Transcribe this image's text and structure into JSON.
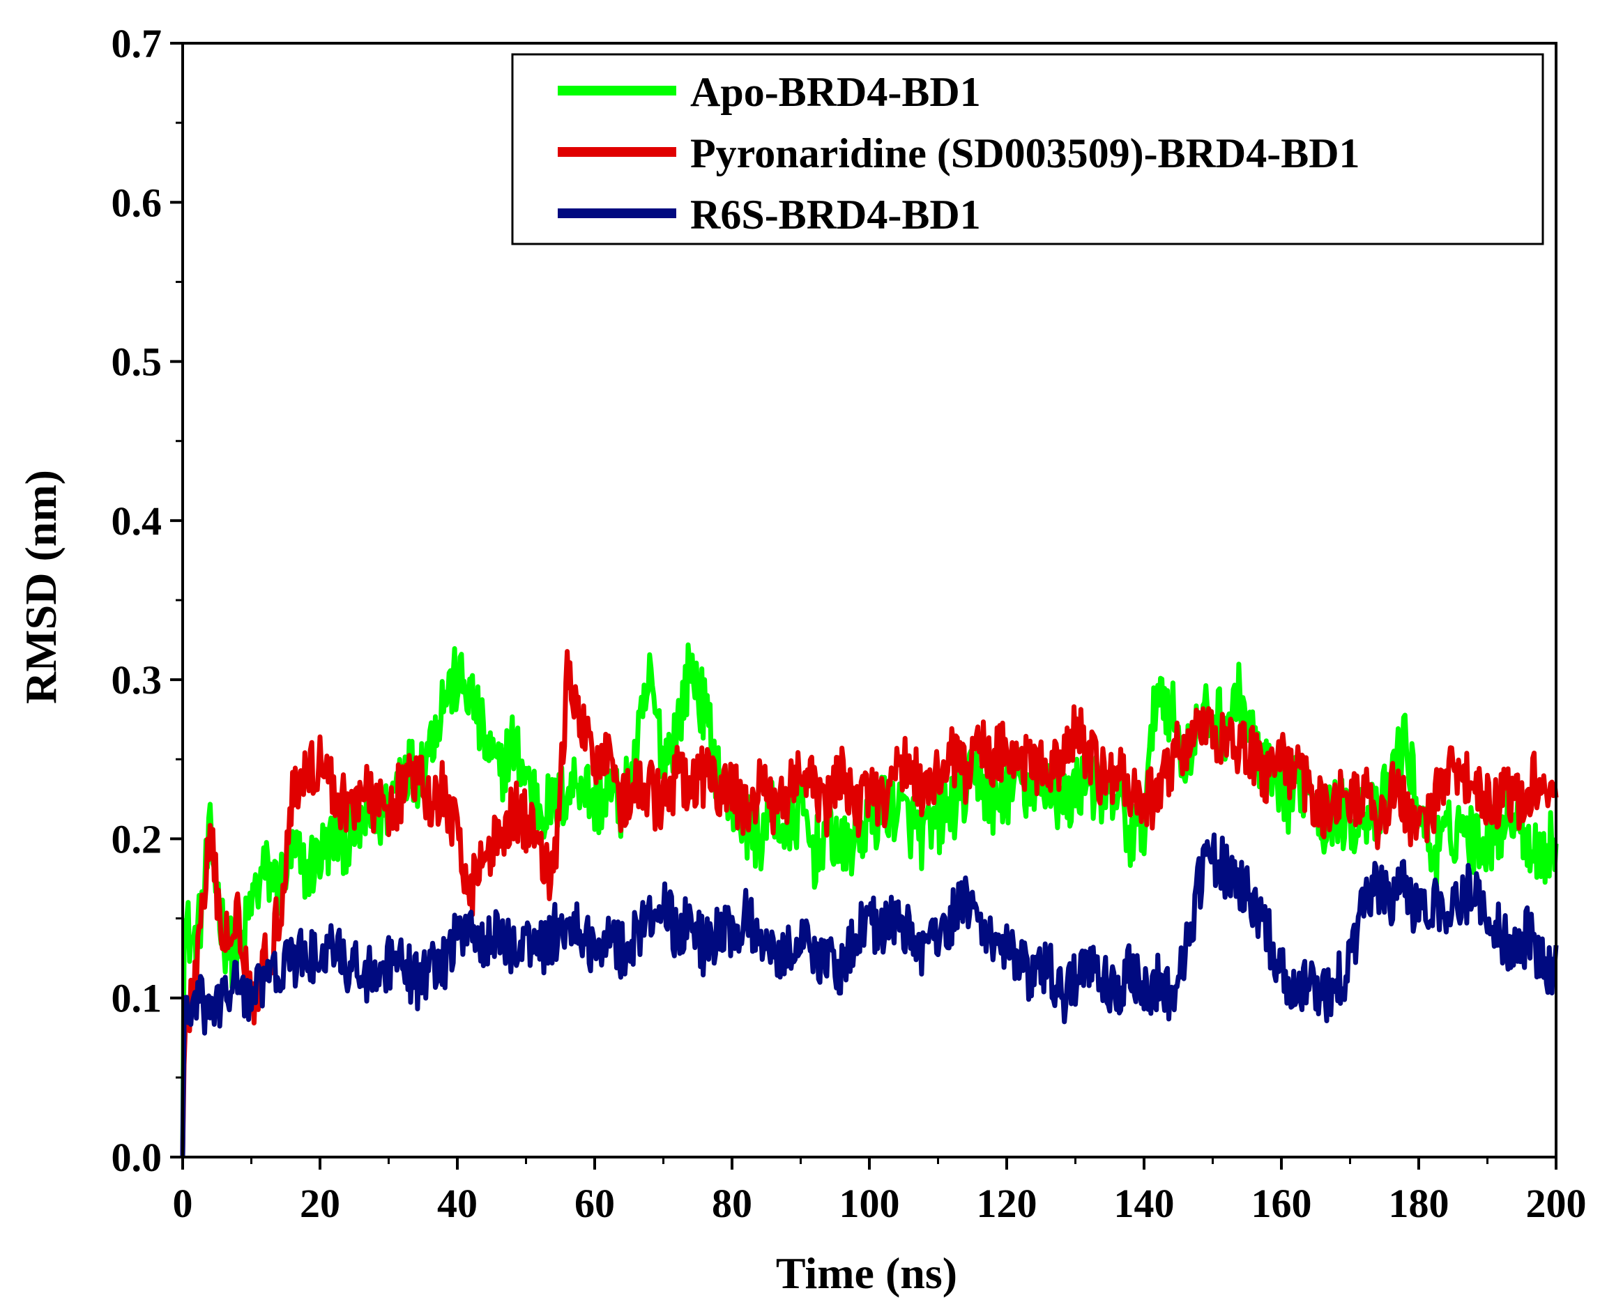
{
  "chart_data": {
    "type": "line",
    "xlabel": "Time (ns)",
    "ylabel": "RMSD (nm)",
    "xlim": [
      0,
      200
    ],
    "ylim": [
      0,
      0.7
    ],
    "xticks": [
      0,
      20,
      40,
      60,
      80,
      100,
      120,
      140,
      160,
      180,
      200
    ],
    "yticks": [
      0.0,
      0.1,
      0.2,
      0.3,
      0.4,
      0.5,
      0.6,
      0.7
    ],
    "ytick_labels": [
      "0.0",
      "0.1",
      "0.2",
      "0.3",
      "0.4",
      "0.5",
      "0.6",
      "0.7"
    ],
    "grid": false,
    "legend_position": "top-right",
    "series": [
      {
        "name": "Apo-BRD4-BD1",
        "color": "#00ff00",
        "x": [
          0,
          2,
          4,
          6,
          8,
          10,
          12,
          14,
          16,
          18,
          20,
          22,
          24,
          26,
          28,
          30,
          32,
          34,
          36,
          38,
          40,
          42,
          44,
          46,
          48,
          50,
          52,
          54,
          56,
          58,
          60,
          62,
          64,
          66,
          68,
          70,
          72,
          74,
          76,
          78,
          80,
          82,
          84,
          86,
          88,
          90,
          92,
          94,
          96,
          98,
          100,
          102,
          104,
          106,
          108,
          110,
          112,
          114,
          116,
          118,
          120,
          122,
          124,
          126,
          128,
          130,
          132,
          134,
          136,
          138,
          140,
          142,
          144,
          146,
          148,
          150,
          152,
          154,
          156,
          158,
          160,
          162,
          164,
          166,
          168,
          170,
          172,
          174,
          176,
          178,
          180,
          182,
          184,
          186,
          188,
          190,
          192,
          194,
          196,
          198,
          200
        ],
        "values": [
          0.15,
          0.13,
          0.2,
          0.14,
          0.12,
          0.16,
          0.18,
          0.17,
          0.19,
          0.18,
          0.19,
          0.2,
          0.2,
          0.21,
          0.21,
          0.22,
          0.25,
          0.24,
          0.26,
          0.29,
          0.3,
          0.29,
          0.26,
          0.24,
          0.26,
          0.24,
          0.22,
          0.22,
          0.23,
          0.24,
          0.22,
          0.23,
          0.22,
          0.25,
          0.3,
          0.25,
          0.27,
          0.31,
          0.28,
          0.24,
          0.22,
          0.21,
          0.2,
          0.22,
          0.2,
          0.22,
          0.19,
          0.21,
          0.19,
          0.2,
          0.21,
          0.22,
          0.22,
          0.21,
          0.2,
          0.21,
          0.22,
          0.23,
          0.24,
          0.22,
          0.23,
          0.24,
          0.22,
          0.24,
          0.22,
          0.23,
          0.24,
          0.22,
          0.23,
          0.2,
          0.21,
          0.3,
          0.28,
          0.25,
          0.27,
          0.28,
          0.27,
          0.29,
          0.26,
          0.24,
          0.22,
          0.23,
          0.24,
          0.21,
          0.22,
          0.21,
          0.22,
          0.21,
          0.24,
          0.26,
          0.22,
          0.19,
          0.2,
          0.21,
          0.2,
          0.2,
          0.21,
          0.22,
          0.2,
          0.19,
          0.2
        ]
      },
      {
        "name": "Pyronaridine (SD003509)-BRD4-BD1",
        "color": "#e00000",
        "x": [
          0,
          2,
          4,
          6,
          8,
          10,
          12,
          14,
          16,
          18,
          20,
          22,
          24,
          26,
          28,
          30,
          32,
          34,
          36,
          38,
          40,
          42,
          44,
          46,
          48,
          50,
          52,
          54,
          56,
          58,
          60,
          62,
          64,
          66,
          68,
          70,
          72,
          74,
          76,
          78,
          80,
          82,
          84,
          86,
          88,
          90,
          92,
          94,
          96,
          98,
          100,
          102,
          104,
          106,
          108,
          110,
          112,
          114,
          116,
          118,
          120,
          122,
          124,
          126,
          128,
          130,
          132,
          134,
          136,
          138,
          140,
          142,
          144,
          146,
          148,
          150,
          152,
          154,
          156,
          158,
          160,
          162,
          164,
          166,
          168,
          170,
          172,
          174,
          176,
          178,
          180,
          182,
          184,
          186,
          188,
          190,
          192,
          194,
          196,
          198,
          200
        ],
        "values": [
          0.06,
          0.12,
          0.2,
          0.13,
          0.16,
          0.1,
          0.12,
          0.15,
          0.23,
          0.24,
          0.25,
          0.23,
          0.22,
          0.23,
          0.22,
          0.22,
          0.23,
          0.24,
          0.22,
          0.23,
          0.2,
          0.17,
          0.19,
          0.2,
          0.22,
          0.21,
          0.2,
          0.17,
          0.3,
          0.27,
          0.25,
          0.26,
          0.22,
          0.23,
          0.23,
          0.22,
          0.24,
          0.23,
          0.24,
          0.23,
          0.23,
          0.22,
          0.23,
          0.22,
          0.23,
          0.24,
          0.23,
          0.22,
          0.24,
          0.22,
          0.23,
          0.22,
          0.24,
          0.25,
          0.23,
          0.24,
          0.25,
          0.24,
          0.26,
          0.25,
          0.26,
          0.25,
          0.24,
          0.25,
          0.24,
          0.27,
          0.25,
          0.24,
          0.24,
          0.23,
          0.22,
          0.23,
          0.25,
          0.26,
          0.27,
          0.26,
          0.27,
          0.26,
          0.25,
          0.24,
          0.25,
          0.24,
          0.23,
          0.22,
          0.23,
          0.22,
          0.23,
          0.21,
          0.23,
          0.22,
          0.21,
          0.22,
          0.24,
          0.25,
          0.23,
          0.22,
          0.23,
          0.22,
          0.23,
          0.24,
          0.22
        ]
      },
      {
        "name": "R6S-BRD4-BD1",
        "color": "#000a80",
        "x": [
          0,
          2,
          4,
          6,
          8,
          10,
          12,
          14,
          16,
          18,
          20,
          22,
          24,
          26,
          28,
          30,
          32,
          34,
          36,
          38,
          40,
          42,
          44,
          46,
          48,
          50,
          52,
          54,
          56,
          58,
          60,
          62,
          64,
          66,
          68,
          70,
          72,
          74,
          76,
          78,
          80,
          82,
          84,
          86,
          88,
          90,
          92,
          94,
          96,
          98,
          100,
          102,
          104,
          106,
          108,
          110,
          112,
          114,
          116,
          118,
          120,
          122,
          124,
          126,
          128,
          130,
          132,
          134,
          136,
          138,
          140,
          142,
          144,
          146,
          148,
          150,
          152,
          154,
          156,
          158,
          160,
          162,
          164,
          166,
          168,
          170,
          172,
          174,
          176,
          178,
          180,
          182,
          184,
          186,
          188,
          190,
          192,
          194,
          196,
          198,
          200
        ],
        "values": [
          0.08,
          0.1,
          0.09,
          0.1,
          0.11,
          0.1,
          0.11,
          0.12,
          0.12,
          0.13,
          0.12,
          0.13,
          0.12,
          0.12,
          0.11,
          0.12,
          0.12,
          0.11,
          0.12,
          0.12,
          0.14,
          0.15,
          0.13,
          0.14,
          0.13,
          0.14,
          0.13,
          0.14,
          0.15,
          0.14,
          0.13,
          0.14,
          0.13,
          0.14,
          0.15,
          0.16,
          0.14,
          0.15,
          0.13,
          0.14,
          0.14,
          0.15,
          0.14,
          0.13,
          0.13,
          0.14,
          0.13,
          0.12,
          0.12,
          0.14,
          0.15,
          0.14,
          0.15,
          0.14,
          0.13,
          0.14,
          0.15,
          0.16,
          0.15,
          0.14,
          0.13,
          0.12,
          0.11,
          0.12,
          0.1,
          0.11,
          0.12,
          0.11,
          0.1,
          0.12,
          0.1,
          0.11,
          0.1,
          0.13,
          0.17,
          0.19,
          0.18,
          0.17,
          0.16,
          0.14,
          0.12,
          0.1,
          0.11,
          0.1,
          0.11,
          0.12,
          0.16,
          0.17,
          0.16,
          0.17,
          0.15,
          0.16,
          0.15,
          0.16,
          0.17,
          0.15,
          0.14,
          0.13,
          0.14,
          0.12,
          0.12
        ]
      }
    ]
  }
}
